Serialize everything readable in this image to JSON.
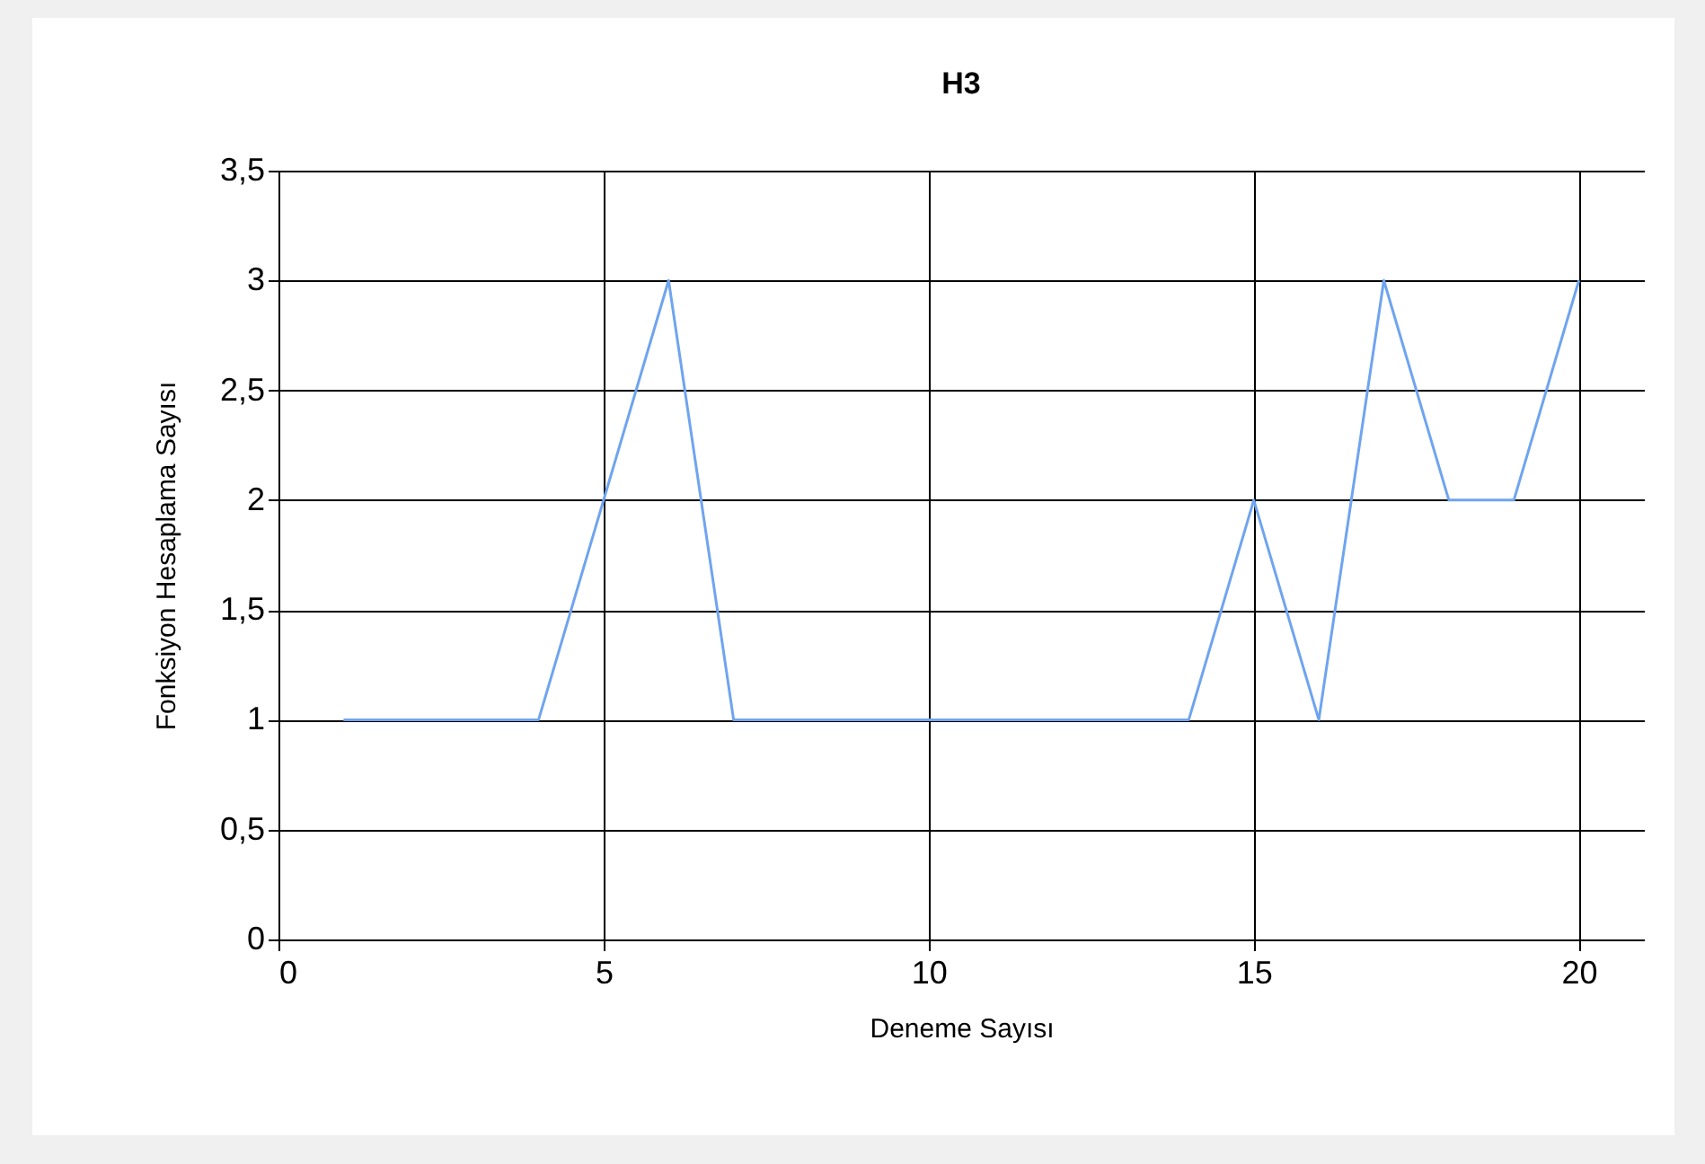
{
  "chart_data": {
    "type": "line",
    "title": "H3",
    "xlabel": "Deneme Sayısı",
    "ylabel": "Fonksiyon Hesaplama Sayısı",
    "x": [
      1,
      2,
      3,
      4,
      5,
      6,
      7,
      8,
      9,
      10,
      11,
      12,
      13,
      14,
      15,
      16,
      17,
      18,
      19,
      20
    ],
    "series": [
      {
        "color": "#6fa4f0",
        "values": [
          1,
          1,
          1,
          1,
          2,
          3,
          1,
          1,
          1,
          1,
          1,
          1,
          1,
          1,
          2,
          1,
          3,
          2,
          2,
          3
        ]
      }
    ],
    "xlim": [
      0,
      21
    ],
    "xticks": [
      0,
      5,
      10,
      15,
      20
    ],
    "ylim": [
      0,
      3.5
    ],
    "yticks": [
      0,
      {
        "value": 0.5,
        "label": "0,5"
      },
      1,
      {
        "value": 1.5,
        "label": "1,5"
      },
      2,
      {
        "value": 2.5,
        "label": "2,5"
      },
      3,
      {
        "value": 3.5,
        "label": "3,5"
      }
    ],
    "grid": true,
    "legend": false,
    "marker": "none",
    "line_style": "solid"
  }
}
